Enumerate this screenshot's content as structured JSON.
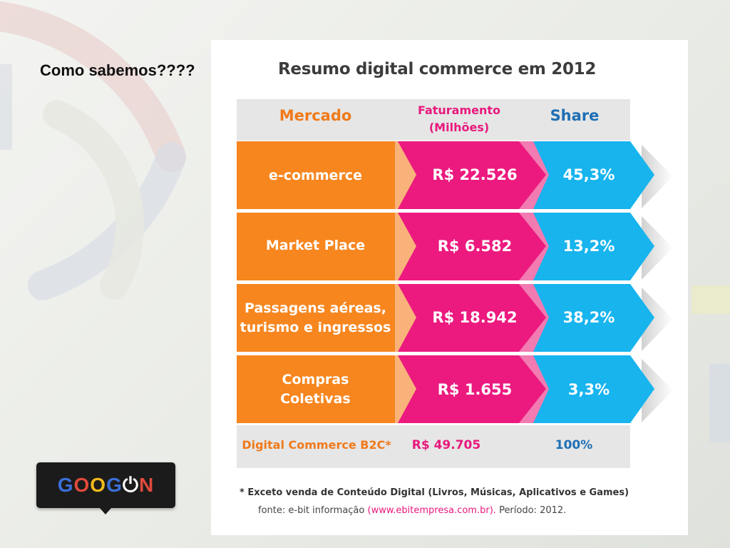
{
  "slide": {
    "title": "Como sabemos????"
  },
  "infographic": {
    "title": "Resumo digital commerce em 2012",
    "headers": {
      "market": "Mercado",
      "revenue_line1": "Faturamento",
      "revenue_line2": "(Milhões)",
      "share": "Share"
    },
    "rows": [
      {
        "label": "e-commerce",
        "label_line2": "",
        "revenue": "R$ 22.526",
        "share": "45,3%"
      },
      {
        "label": "Market Place",
        "label_line2": "",
        "revenue": "R$ 6.582",
        "share": "13,2%"
      },
      {
        "label": "Passagens aéreas,",
        "label_line2": "turismo e ingressos",
        "revenue": "R$ 18.942",
        "share": "38,2%"
      },
      {
        "label": "Compras",
        "label_line2": "Coletivas",
        "revenue": "R$ 1.655",
        "share": "3,3%"
      }
    ],
    "total": {
      "label": "Digital Commerce B2C*",
      "revenue": "R$ 49.705",
      "share": "100%"
    },
    "footnote": "* Exceto venda de Conteúdo Digital (Livros, Músicas, Aplicativos e Games)",
    "source_prefix": "fonte: e-bit informação",
    "source_link": "(www.ebitempresa.com.br).",
    "source_suffix": "Período: 2012."
  },
  "logo": {
    "letters": [
      "G",
      "O",
      "O",
      "G",
      "⏻",
      "N"
    ],
    "colors": [
      "#3b6fd8",
      "#e04a3c",
      "#f2b81c",
      "#3b6fd8",
      "#ffffff",
      "#e04a3c"
    ]
  },
  "colors": {
    "orange": "#f7861f",
    "magenta": "#ec1a7f",
    "cyan": "#17b4ee",
    "header_gray": "#e6e6e6"
  }
}
